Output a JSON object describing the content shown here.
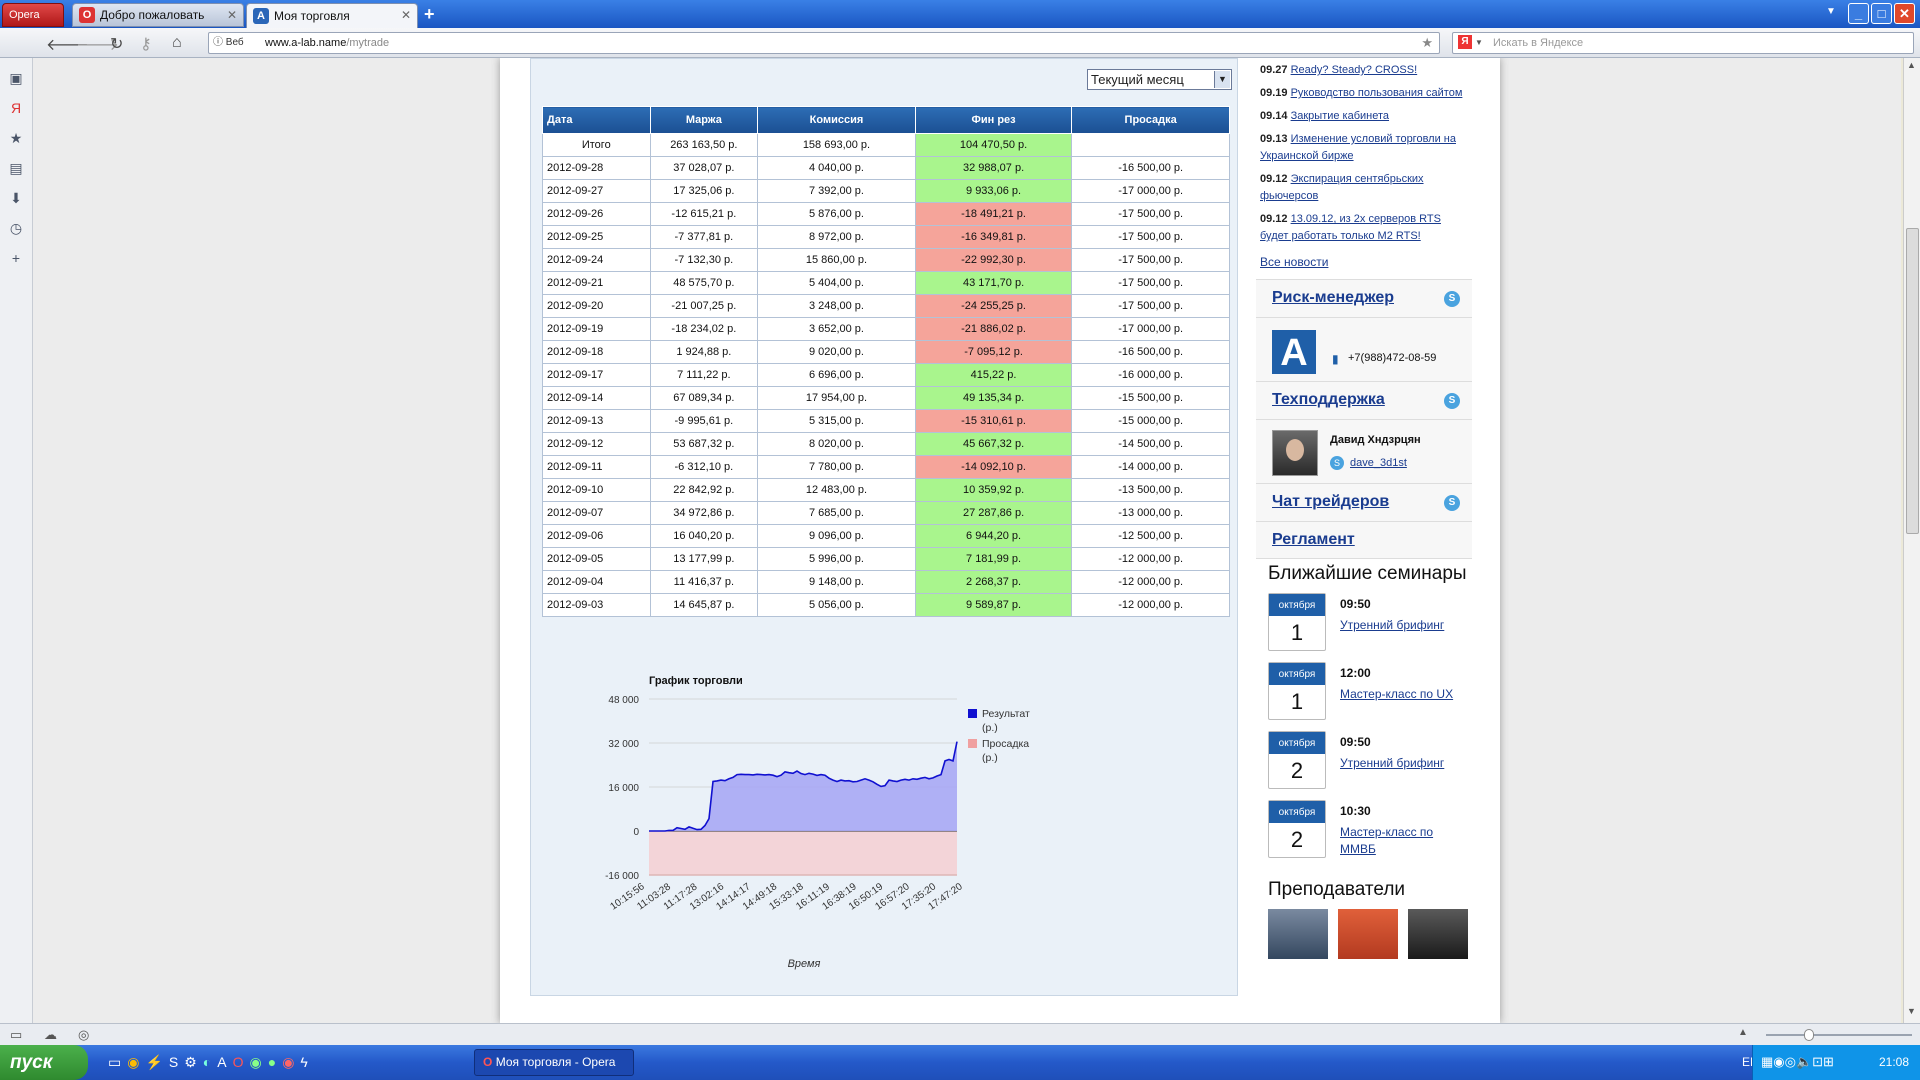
{
  "browser": {
    "menu_label": "Opera",
    "tabs": [
      {
        "label": "Добро пожаловать",
        "active": false
      },
      {
        "label": "Моя торговля",
        "active": true
      }
    ],
    "address_prefix": "Веб",
    "url_domain": "www.a-lab.name",
    "url_path": "/mytrade",
    "search_placeholder": "Искать в Яндексе"
  },
  "trade": {
    "period_select": "Текущий месяц",
    "columns": [
      "Дата",
      "Маржа",
      "Комиссия",
      "Фин рез",
      "Просадка"
    ],
    "total": {
      "date": "Итого",
      "margin": "263 163,50 р.",
      "commission": "158 693,00 р.",
      "result": "104 470,50 р.",
      "drawdown": ""
    },
    "rows": [
      {
        "date": "2012-09-28",
        "margin": "37 028,07 р.",
        "commission": "4 040,00 р.",
        "result": "32 988,07 р.",
        "drawdown": "-16 500,00 р.",
        "status": "pos"
      },
      {
        "date": "2012-09-27",
        "margin": "17 325,06 р.",
        "commission": "7 392,00 р.",
        "result": "9 933,06 р.",
        "drawdown": "-17 000,00 р.",
        "status": "pos"
      },
      {
        "date": "2012-09-26",
        "margin": "-12 615,21 р.",
        "commission": "5 876,00 р.",
        "result": "-18 491,21 р.",
        "drawdown": "-17 500,00 р.",
        "status": "neg"
      },
      {
        "date": "2012-09-25",
        "margin": "-7 377,81 р.",
        "commission": "8 972,00 р.",
        "result": "-16 349,81 р.",
        "drawdown": "-17 500,00 р.",
        "status": "neg"
      },
      {
        "date": "2012-09-24",
        "margin": "-7 132,30 р.",
        "commission": "15 860,00 р.",
        "result": "-22 992,30 р.",
        "drawdown": "-17 500,00 р.",
        "status": "neg"
      },
      {
        "date": "2012-09-21",
        "margin": "48 575,70 р.",
        "commission": "5 404,00 р.",
        "result": "43 171,70 р.",
        "drawdown": "-17 500,00 р.",
        "status": "pos"
      },
      {
        "date": "2012-09-20",
        "margin": "-21 007,25 р.",
        "commission": "3 248,00 р.",
        "result": "-24 255,25 р.",
        "drawdown": "-17 500,00 р.",
        "status": "neg"
      },
      {
        "date": "2012-09-19",
        "margin": "-18 234,02 р.",
        "commission": "3 652,00 р.",
        "result": "-21 886,02 р.",
        "drawdown": "-17 000,00 р.",
        "status": "neg"
      },
      {
        "date": "2012-09-18",
        "margin": "1 924,88 р.",
        "commission": "9 020,00 р.",
        "result": "-7 095,12 р.",
        "drawdown": "-16 500,00 р.",
        "status": "neg"
      },
      {
        "date": "2012-09-17",
        "margin": "7 111,22 р.",
        "commission": "6 696,00 р.",
        "result": "415,22 р.",
        "drawdown": "-16 000,00 р.",
        "status": "pos"
      },
      {
        "date": "2012-09-14",
        "margin": "67 089,34 р.",
        "commission": "17 954,00 р.",
        "result": "49 135,34 р.",
        "drawdown": "-15 500,00 р.",
        "status": "pos"
      },
      {
        "date": "2012-09-13",
        "margin": "-9 995,61 р.",
        "commission": "5 315,00 р.",
        "result": "-15 310,61 р.",
        "drawdown": "-15 000,00 р.",
        "status": "neg"
      },
      {
        "date": "2012-09-12",
        "margin": "53 687,32 р.",
        "commission": "8 020,00 р.",
        "result": "45 667,32 р.",
        "drawdown": "-14 500,00 р.",
        "status": "pos"
      },
      {
        "date": "2012-09-11",
        "margin": "-6 312,10 р.",
        "commission": "7 780,00 р.",
        "result": "-14 092,10 р.",
        "drawdown": "-14 000,00 р.",
        "status": "neg"
      },
      {
        "date": "2012-09-10",
        "margin": "22 842,92 р.",
        "commission": "12 483,00 р.",
        "result": "10 359,92 р.",
        "drawdown": "-13 500,00 р.",
        "status": "pos"
      },
      {
        "date": "2012-09-07",
        "margin": "34 972,86 р.",
        "commission": "7 685,00 р.",
        "result": "27 287,86 р.",
        "drawdown": "-13 000,00 р.",
        "status": "pos"
      },
      {
        "date": "2012-09-06",
        "margin": "16 040,20 р.",
        "commission": "9 096,00 р.",
        "result": "6 944,20 р.",
        "drawdown": "-12 500,00 р.",
        "status": "pos"
      },
      {
        "date": "2012-09-05",
        "margin": "13 177,99 р.",
        "commission": "5 996,00 р.",
        "result": "7 181,99 р.",
        "drawdown": "-12 000,00 р.",
        "status": "pos"
      },
      {
        "date": "2012-09-04",
        "margin": "11 416,37 р.",
        "commission": "9 148,00 р.",
        "result": "2 268,37 р.",
        "drawdown": "-12 000,00 р.",
        "status": "pos"
      },
      {
        "date": "2012-09-03",
        "margin": "14 645,87 р.",
        "commission": "5 056,00 р.",
        "result": "9 589,87 р.",
        "drawdown": "-12 000,00 р.",
        "status": "pos"
      }
    ]
  },
  "chart_data": {
    "type": "area",
    "title": "График торговли",
    "xlabel": "Время",
    "ylabel": "",
    "ylim": [
      -16000,
      48000
    ],
    "yticks": [
      "48 000",
      "32 000",
      "16 000",
      "0",
      "-16 000"
    ],
    "yticks_values": [
      48000,
      32000,
      16000,
      0,
      -16000
    ],
    "x_tick_labels": [
      "10:15:56",
      "11:03:28",
      "11:17:28",
      "13:02:16",
      "14:14:17",
      "14:49:18",
      "15:33:18",
      "16:11:19",
      "16:38:19",
      "16:50:19",
      "16:57:20",
      "17:35:20",
      "17:47:20"
    ],
    "legend_position": "right",
    "grid": true,
    "series": [
      {
        "name": "Результат (р.)",
        "color": "#1010d0",
        "fill": "#a9a9f4",
        "values": [
          0,
          0,
          0,
          0,
          0,
          200,
          200,
          1200,
          900,
          600,
          1500,
          1000,
          500,
          600,
          2000,
          4500,
          18000,
          18200,
          18500,
          18300,
          19000,
          19500,
          20500,
          20600,
          20500,
          20500,
          20400,
          20600,
          20500,
          20400,
          20500,
          20300,
          19800,
          20300,
          21500,
          21200,
          21000,
          21800,
          20900,
          20500,
          21000,
          20700,
          20200,
          20500,
          20300,
          19200,
          18500,
          18000,
          18500,
          18200,
          18300,
          17900,
          18000,
          18500,
          19000,
          18500,
          17900,
          17000,
          16200,
          16500,
          18500,
          18200,
          18000,
          18500,
          18800,
          18500,
          19000,
          18800,
          19200,
          19500,
          19000,
          19300,
          20000,
          20500,
          25500,
          26000,
          25500,
          32500
        ]
      },
      {
        "name": "Просадка (р.)",
        "color": "#f0a0a0",
        "fill": "#f3d4d8",
        "values": [
          -16000,
          -16000
        ]
      }
    ]
  },
  "news": [
    {
      "date": "09.27",
      "text": "Ready? Steady? CROSS!"
    },
    {
      "date": "09.19",
      "text": "Руководство пользования сайтом"
    },
    {
      "date": "09.14",
      "text": "Закрытие кабинета"
    },
    {
      "date": "09.13",
      "text": "Изменение условий торговли на Украинской бирже"
    },
    {
      "date": "09.12",
      "text": "Экспирация сентябрьских фьючерсов"
    },
    {
      "date": "09.12",
      "text": "13.09.12, из 2х серверов RTS будет работать только M2 RTS!"
    }
  ],
  "all_news_link": "Все новости",
  "contacts": {
    "risk_manager": "Риск-менеджер",
    "risk_phone": "+7(988)472-08-59",
    "support": "Техподдержка",
    "support_person": "Давид Хндзрцян",
    "support_skype": "dave_3d1st",
    "chat": "Чат трейдеров",
    "rules": "Регламент"
  },
  "seminars": {
    "heading": "Ближайшие семинары",
    "items": [
      {
        "month": "октября",
        "day": "1",
        "time": "09:50",
        "name": "Утренний брифинг"
      },
      {
        "month": "октября",
        "day": "1",
        "time": "12:00",
        "name": "Мастер-класс по UX"
      },
      {
        "month": "октября",
        "day": "2",
        "time": "09:50",
        "name": "Утренний брифинг"
      },
      {
        "month": "октября",
        "day": "2",
        "time": "10:30",
        "name": "Мастер-класс по ММВБ"
      }
    ]
  },
  "teachers_heading": "Преподаватели",
  "taskbar": {
    "start": "пуск",
    "task_label": "Моя торговля - Opera",
    "lang": "EN",
    "clock": "21:08"
  },
  "colors": {
    "pos": "#a9f58d",
    "neg": "#f5a49a",
    "header": "#1b4f92",
    "link": "#1a3c8f"
  }
}
